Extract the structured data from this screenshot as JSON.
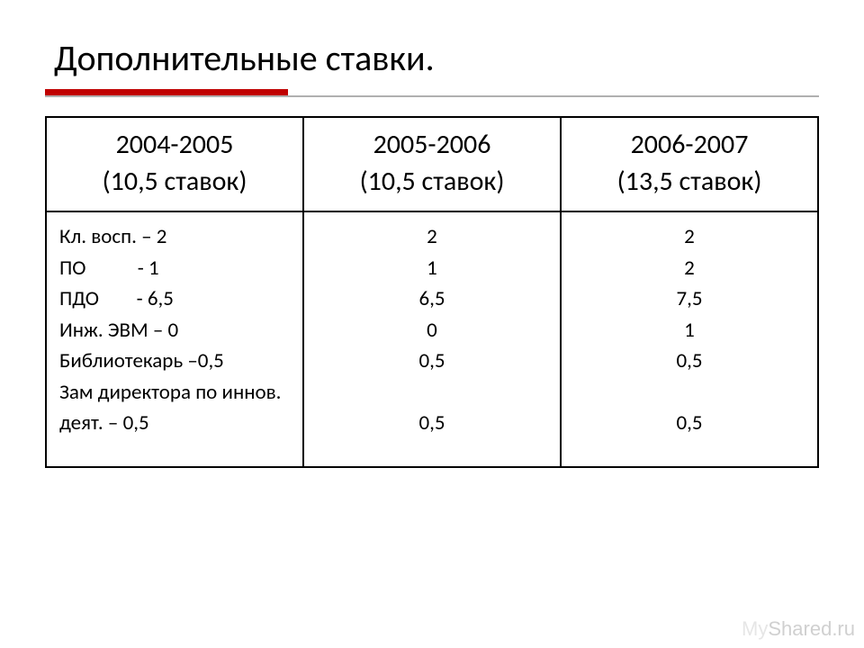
{
  "title": "Дополнительные ставки.",
  "accent_color": "#c00000",
  "underline_gray": "#b0b0b0",
  "border_color": "#000000",
  "background_color": "#ffffff",
  "header_fontsize": 30,
  "body_fontsize": 23,
  "title_fontsize": 40,
  "table": {
    "columns": [
      {
        "year": "2004-2005",
        "sub": "(10,5 ставок)"
      },
      {
        "year": "2005-2006",
        "sub": "(10,5 ставок)"
      },
      {
        "year": "2006-2007",
        "sub": "(13,5 ставок)"
      }
    ],
    "col1_lines": [
      "Кл. восп. – 2",
      "ПО           - 1",
      "ПДО        - 6,5",
      "Инж. ЭВМ – 0",
      "Библиотекарь –0,5",
      "Зам директора по иннов. деят. – 0,5"
    ],
    "col2_values": [
      "2",
      "1",
      "6,5",
      "0",
      "0,5",
      "",
      "0,5"
    ],
    "col3_values": [
      "2",
      "2",
      "7,5",
      "1",
      "0,5",
      "",
      "0,5"
    ]
  },
  "watermark": {
    "part1": "My",
    "part2": "Shared.ru"
  }
}
